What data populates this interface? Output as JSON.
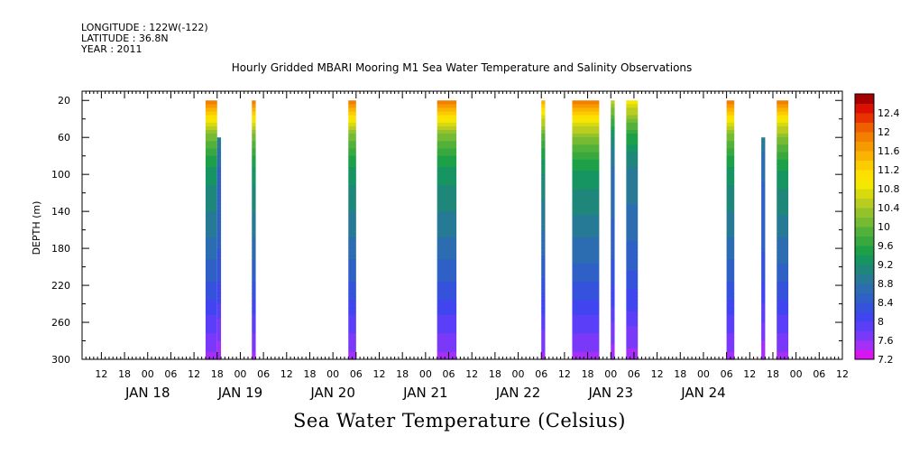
{
  "header": {
    "longitude": "LONGITUDE : 122W(-122)",
    "latitude": "LATITUDE : 36.8N",
    "year": "YEAR : 2011"
  },
  "chart_data": {
    "type": "heatmap",
    "title": "Hourly Gridded MBARI Mooring M1 Sea Water Temperature and Salinity Observations",
    "xlabel": "",
    "ylabel": "DEPTH (m)",
    "colorbar_label": "Sea Water Temperature (Celsius)",
    "x_unit": "hours since JAN 18 00:00",
    "x_range": [
      -17,
      180
    ],
    "y_range": [
      10,
      300
    ],
    "y_reversed": true,
    "y_ticks": [
      20,
      60,
      100,
      140,
      180,
      220,
      260,
      300
    ],
    "x_hour_tick_labels": [
      "06",
      "12",
      "18",
      "00"
    ],
    "x_day_labels": [
      {
        "label": "JAN 18",
        "hour": 0
      },
      {
        "label": "JAN 19",
        "hour": 24
      },
      {
        "label": "JAN 20",
        "hour": 48
      },
      {
        "label": "JAN 21",
        "hour": 72
      },
      {
        "label": "JAN 22",
        "hour": 96
      },
      {
        "label": "JAN 23",
        "hour": 120
      },
      {
        "label": "JAN 24",
        "hour": 144
      }
    ],
    "colorbar": {
      "levels": [
        7.2,
        7.4,
        7.6,
        7.8,
        8,
        8.2,
        8.4,
        8.6,
        8.8,
        9,
        9.2,
        9.4,
        9.6,
        9.8,
        10,
        10.2,
        10.4,
        10.6,
        10.8,
        11,
        11.2,
        11.4,
        11.6,
        11.8,
        12,
        12.2,
        12.4,
        12.6
      ],
      "colors": [
        "#d817f0",
        "#a42ff7",
        "#7a38f9",
        "#5b3ef8",
        "#4145f0",
        "#3552dc",
        "#2f60c6",
        "#2c6cb0",
        "#277a95",
        "#1e877a",
        "#169563",
        "#1ea048",
        "#38a83f",
        "#52b13a",
        "#74ba33",
        "#94c22a",
        "#b8cd1f",
        "#d9d910",
        "#f5e800",
        "#fde000",
        "#fccc00",
        "#f9b300",
        "#f69a00",
        "#f27f00",
        "#ef5f00",
        "#e83300",
        "#dc1000",
        "#a50000"
      ],
      "tick_labels": [
        "7.2",
        "7.6",
        "8",
        "8.4",
        "8.8",
        "9.2",
        "9.6",
        "10",
        "10.4",
        "10.8",
        "11.2",
        "11.6",
        "12",
        "12.4"
      ]
    },
    "profile_temperature": {
      "depths": [
        20,
        40,
        60,
        80,
        100,
        120,
        140,
        160,
        180,
        200,
        220,
        240,
        260,
        280,
        300
      ],
      "temps": [
        11.9,
        10.9,
        10.1,
        9.6,
        9.3,
        9.15,
        9.0,
        8.85,
        8.7,
        8.55,
        8.35,
        8.15,
        7.9,
        7.7,
        7.55
      ]
    },
    "data_segments": [
      {
        "start": 15,
        "end": 18,
        "top": 20,
        "bottom": 300,
        "surface": 11.9
      },
      {
        "start": 18,
        "end": 19,
        "top": 60,
        "bottom": 300,
        "surface": 10.1
      },
      {
        "start": 27,
        "end": 28,
        "top": 20,
        "bottom": 300,
        "surface": 11.9
      },
      {
        "start": 52,
        "end": 54,
        "top": 20,
        "bottom": 300,
        "surface": 11.9
      },
      {
        "start": 75,
        "end": 80,
        "top": 20,
        "bottom": 300,
        "surface": 11.9
      },
      {
        "start": 102,
        "end": 103,
        "top": 20,
        "bottom": 300,
        "surface": 11.6
      },
      {
        "start": 110,
        "end": 117,
        "top": 20,
        "bottom": 300,
        "surface": 12.0
      },
      {
        "start": 120,
        "end": 121,
        "top": 20,
        "bottom": 300,
        "surface": 10.5
      },
      {
        "start": 124,
        "end": 127,
        "top": 20,
        "bottom": 300,
        "surface": 11.0
      },
      {
        "start": 150,
        "end": 152,
        "top": 20,
        "bottom": 300,
        "surface": 11.9
      },
      {
        "start": 159,
        "end": 160,
        "top": 60,
        "bottom": 300,
        "surface": 10.2
      },
      {
        "start": 163,
        "end": 166,
        "top": 20,
        "bottom": 300,
        "surface": 12.0
      }
    ]
  }
}
